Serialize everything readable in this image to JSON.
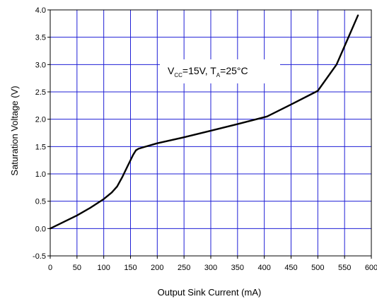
{
  "chart_data": {
    "type": "line",
    "xlabel": "Output Sink Current (mA)",
    "ylabel": "Saturation Voltage (V)",
    "xlim": [
      0,
      600
    ],
    "ylim": [
      -0.5,
      4.0
    ],
    "xticks": [
      0,
      50,
      100,
      150,
      200,
      250,
      300,
      350,
      400,
      450,
      500,
      550,
      600
    ],
    "yticks": [
      -0.5,
      0.0,
      0.5,
      1.0,
      1.5,
      2.0,
      2.5,
      3.0,
      3.5,
      4.0
    ],
    "xtick_labels": [
      "0",
      "50",
      "100",
      "150",
      "200",
      "250",
      "300",
      "350",
      "400",
      "450",
      "500",
      "550",
      "600"
    ],
    "ytick_labels": [
      "-0.5",
      "0.0",
      "0.5",
      "1.0",
      "1.5",
      "2.0",
      "2.5",
      "3.0",
      "3.5",
      "4.0"
    ],
    "grid": true,
    "grid_color": "#1f1fd6",
    "line_color": "#000000",
    "annotation": {
      "v": "V",
      "cc": "CC",
      "mid": "=15V, T",
      "a": "A",
      "end": "=25°C"
    },
    "series": [
      {
        "x": [
          0,
          25,
          50,
          75,
          100,
          115,
          125,
          135,
          145,
          155,
          160,
          165,
          175,
          200,
          250,
          300,
          350,
          405,
          450,
          500,
          535,
          555,
          575
        ],
        "y": [
          0.0,
          0.12,
          0.24,
          0.38,
          0.54,
          0.66,
          0.77,
          0.95,
          1.15,
          1.35,
          1.43,
          1.46,
          1.49,
          1.56,
          1.67,
          1.79,
          1.91,
          2.05,
          2.27,
          2.52,
          3.0,
          3.45,
          3.9
        ]
      }
    ]
  }
}
